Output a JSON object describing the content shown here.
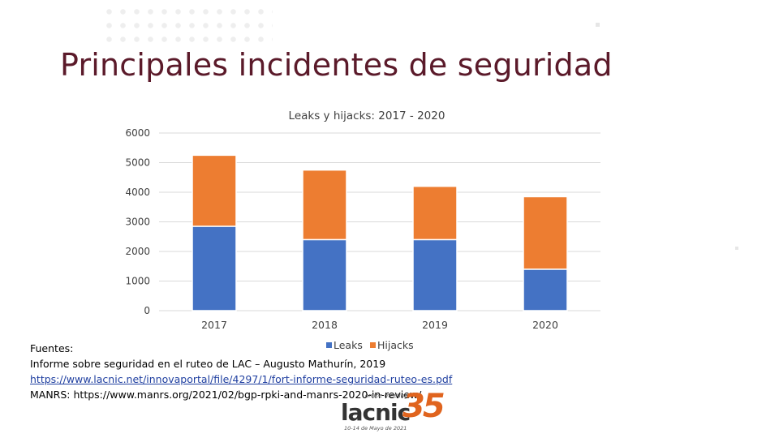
{
  "slide": {
    "title": "Principales incidentes de seguridad"
  },
  "chart_data": {
    "type": "bar",
    "stacked": true,
    "title": "Leaks y hijacks: 2017 - 2020",
    "categories": [
      "2017",
      "2018",
      "2019",
      "2020"
    ],
    "series": [
      {
        "name": "Leaks",
        "values": [
          2850,
          2400,
          2400,
          1400
        ],
        "color": "#4472C4"
      },
      {
        "name": "Hijacks",
        "values": [
          2400,
          2350,
          1800,
          2450
        ],
        "color": "#ED7D31"
      }
    ],
    "yticks": [
      "0",
      "1000",
      "2000",
      "3000",
      "4000",
      "5000",
      "6000"
    ],
    "ylim": [
      0,
      6000
    ],
    "grid": true,
    "legend": "bottom"
  },
  "sources": {
    "label": "Fuentes:",
    "line1": "Informe sobre seguridad en el ruteo de LAC – Augusto Mathurín, 2019",
    "link1": "https://www.lacnic.net/innovaportal/file/4297/1/fort-informe-seguridad-ruteo-es.pdf",
    "line2": "MANRS: https://www.manrs.org/2021/02/bgp-rpki-and-manrs-2020-in-review/"
  },
  "logo": {
    "tagline": "online meeting",
    "word": "lacnic",
    "number": "35",
    "dates": "10-14 de Mayo de 2021"
  }
}
